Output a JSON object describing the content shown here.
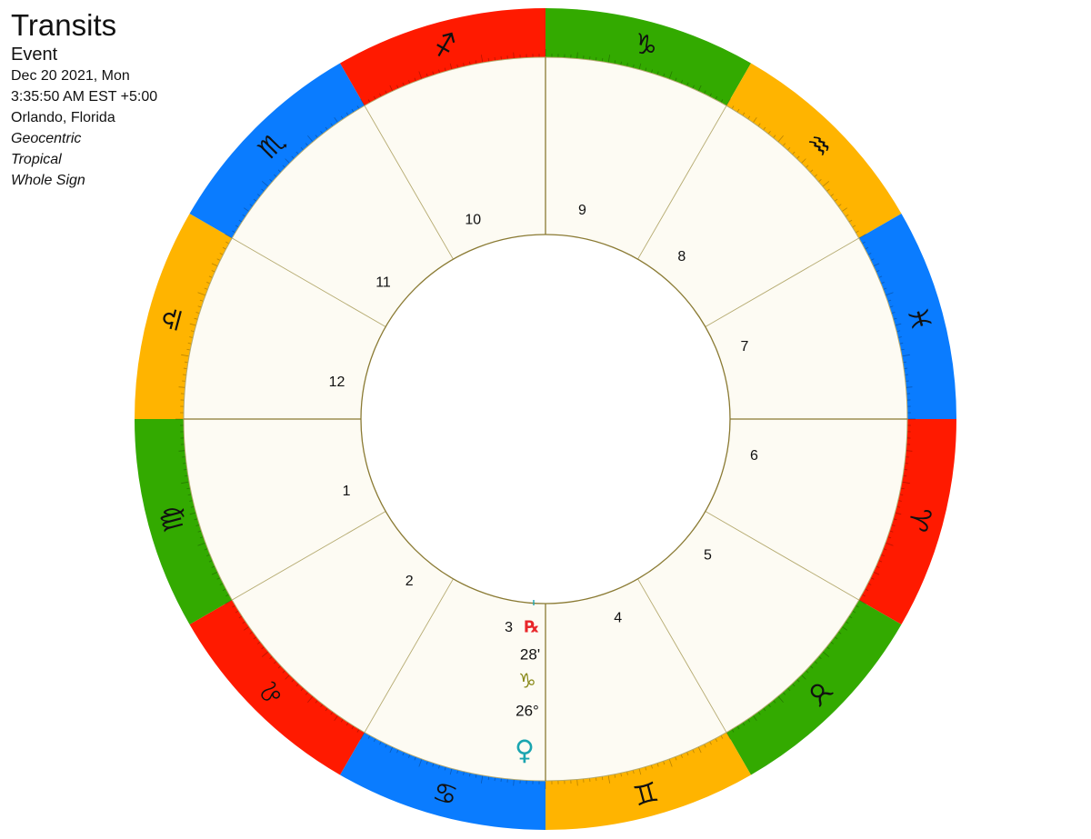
{
  "info": {
    "title": "Transits",
    "subtitle": "Event",
    "date": "Dec 20 2021, Mon",
    "time": "3:35:50 AM EST +5:00",
    "location": "Orlando, Florida",
    "zodiac_mode": "Geocentric",
    "zodiac_type": "Tropical",
    "house_system": "Whole Sign"
  },
  "wheel": {
    "signs": [
      {
        "name": "Aries",
        "glyph": "♈",
        "color": "#ff1a00"
      },
      {
        "name": "Taurus",
        "glyph": "♉",
        "color": "#33aa00"
      },
      {
        "name": "Gemini",
        "glyph": "♊",
        "color": "#ffb400"
      },
      {
        "name": "Cancer",
        "glyph": "♋",
        "color": "#0a7cff"
      },
      {
        "name": "Leo",
        "glyph": "♌",
        "color": "#ff1a00"
      },
      {
        "name": "Virgo",
        "glyph": "♍",
        "color": "#33aa00"
      },
      {
        "name": "Libra",
        "glyph": "♎",
        "color": "#ffb400"
      },
      {
        "name": "Scorpio",
        "glyph": "♏",
        "color": "#0a7cff"
      },
      {
        "name": "Sagittarius",
        "glyph": "♐",
        "color": "#ff1a00"
      },
      {
        "name": "Capricorn",
        "glyph": "♑",
        "color": "#33aa00"
      },
      {
        "name": "Aquarius",
        "glyph": "♒",
        "color": "#ffb400"
      },
      {
        "name": "Pisces",
        "glyph": "♓",
        "color": "#0a7cff"
      }
    ],
    "houses": [
      "1",
      "2",
      "3",
      "4",
      "5",
      "6",
      "7",
      "8",
      "9",
      "10",
      "11",
      "12"
    ],
    "colors": {
      "ring_fill": "#fdfbf3",
      "house_line": "#b5aa70",
      "inner_circle": "#8a7a33",
      "retrograde": "#e8262a",
      "capricorn_glyph": "#8a8a1a",
      "venus": "#1aa5b0"
    },
    "planet": {
      "name": "Venus",
      "glyph": "♀",
      "degree_label": "26°",
      "sign_glyph": "♑",
      "minute_label": "28'",
      "retrograde_label": "℞"
    }
  }
}
